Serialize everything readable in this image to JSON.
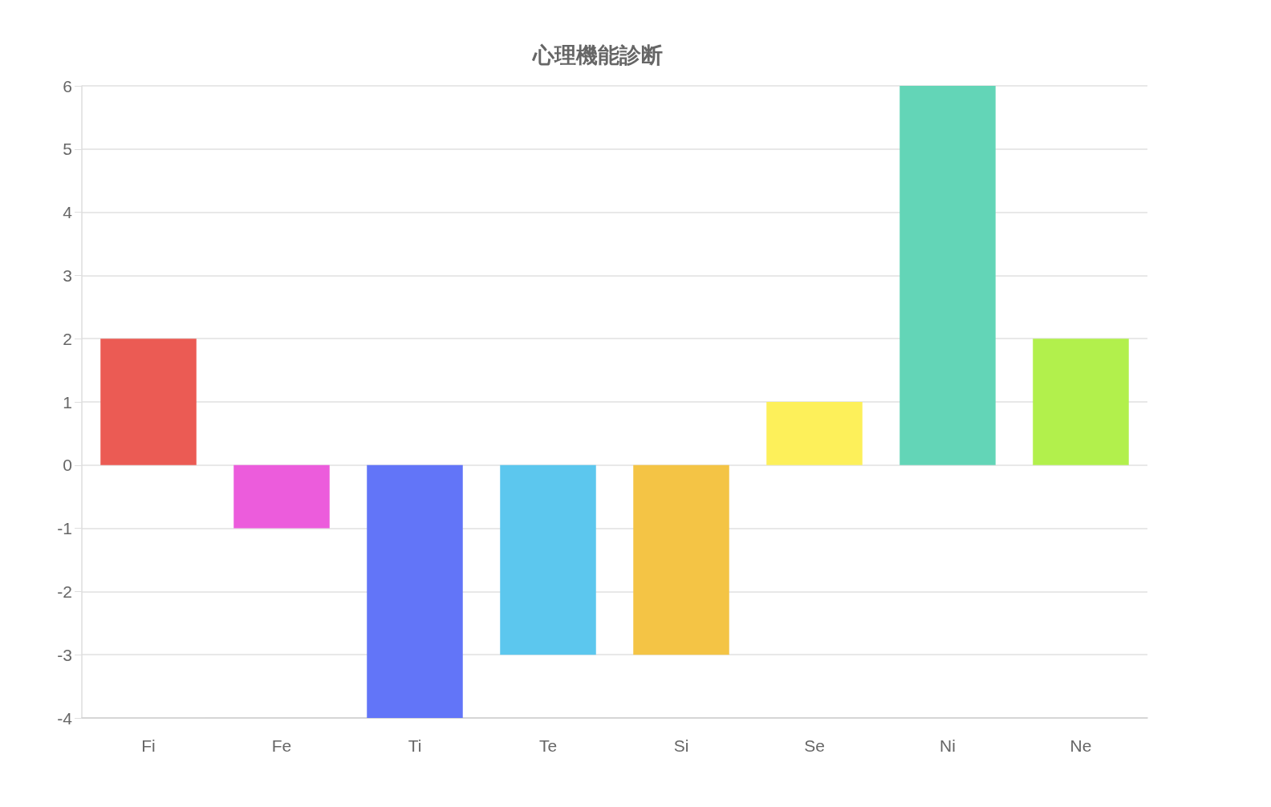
{
  "chart_data": {
    "type": "bar",
    "title": "心理機能診断",
    "categories": [
      "Fi",
      "Fe",
      "Ti",
      "Te",
      "Si",
      "Se",
      "Ni",
      "Ne"
    ],
    "values": [
      2,
      -1,
      -4,
      -3,
      -3,
      1,
      6,
      2
    ],
    "colors": [
      "#eb5b54",
      "#ec5cdc",
      "#6275f8",
      "#5cc7ee",
      "#f4c445",
      "#fdf05a",
      "#63d5b7",
      "#b2f04c"
    ],
    "ylim": [
      -4,
      6
    ],
    "yticks": [
      -4,
      -3,
      -2,
      -1,
      0,
      1,
      2,
      3,
      4,
      5,
      6
    ],
    "grid": "y"
  }
}
